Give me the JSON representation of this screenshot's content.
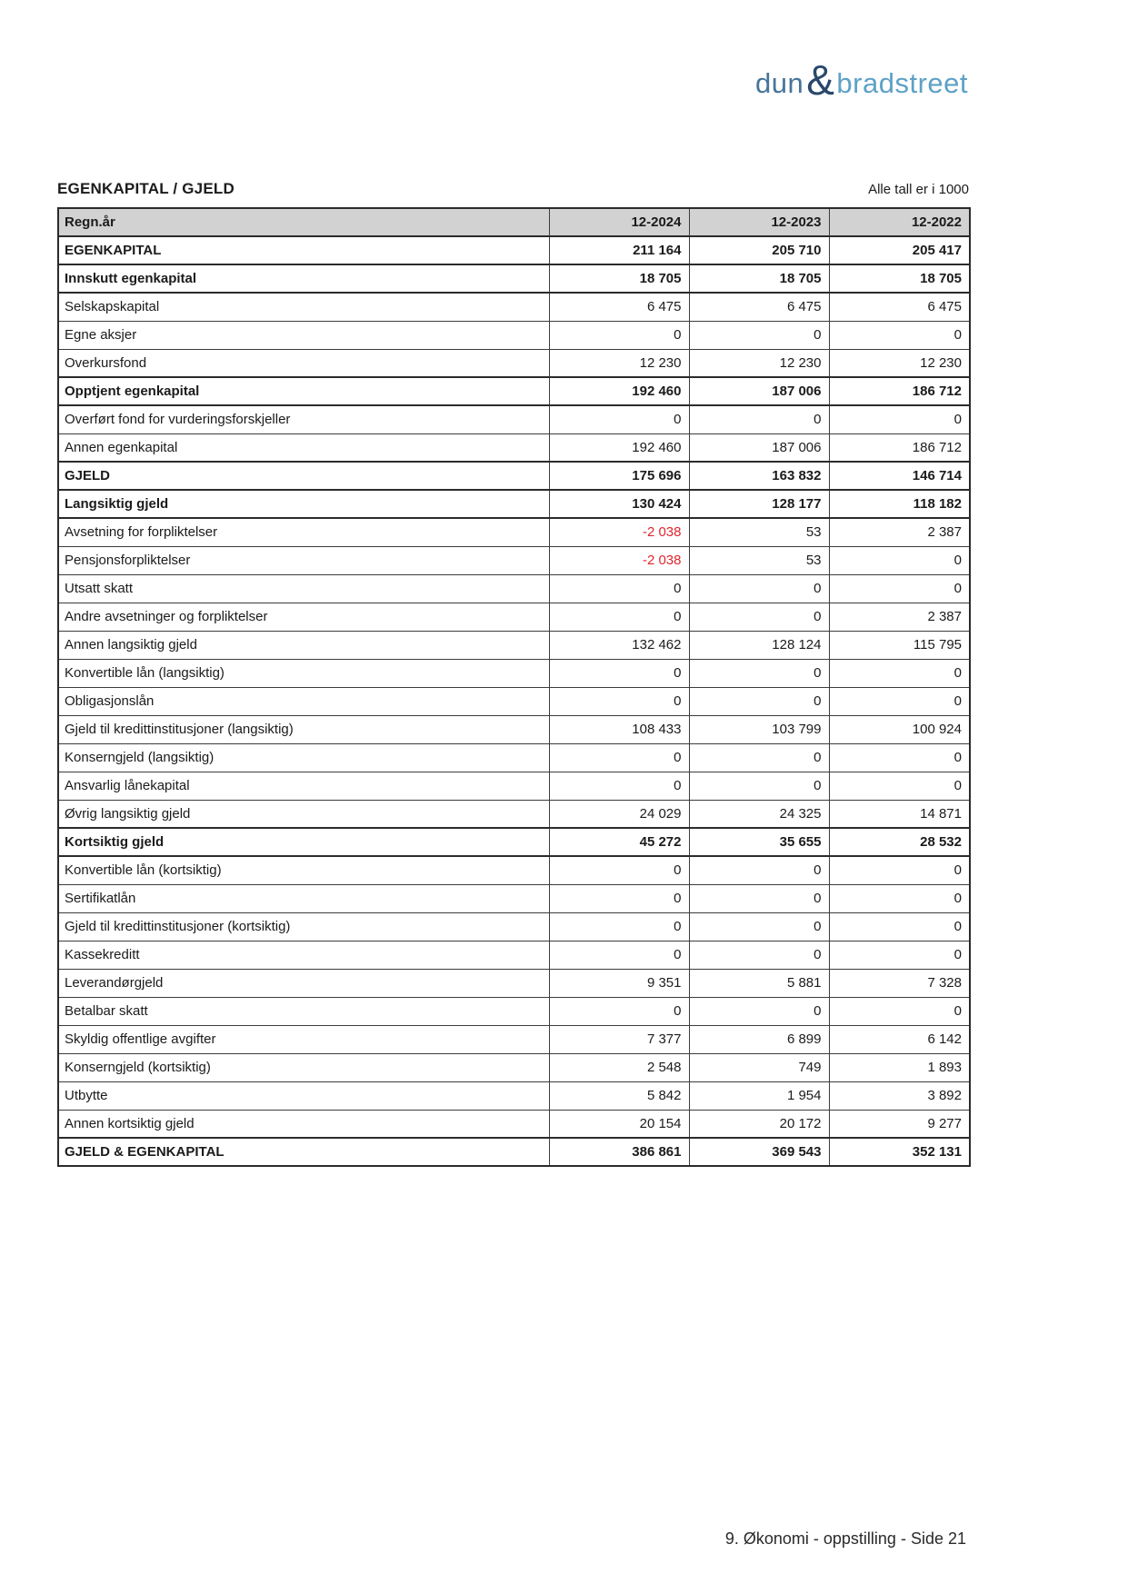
{
  "logo": {
    "dun": "dun",
    "amp": "&",
    "bradstreet": "bradstreet",
    "dun_color": "#47759a",
    "amp_color": "#29486b",
    "bradstreet_color": "#5ea1c6"
  },
  "page": {
    "title": "EGENKAPITAL / GJELD",
    "units_note": "Alle tall er i 1000",
    "footer": "9. Økonomi - oppstilling - Side 21"
  },
  "table": {
    "header": {
      "label": "Regn.år",
      "cols": [
        "12-2024",
        "12-2023",
        "12-2022"
      ]
    },
    "negative_color": "#e0262c",
    "header_bg": "#d2d2d2",
    "rows": [
      {
        "label": "EGENKAPITAL",
        "bold": true,
        "values": [
          "211 164",
          "205 710",
          "205 417"
        ]
      },
      {
        "label": "Innskutt egenkapital",
        "bold": true,
        "values": [
          "18 705",
          "18 705",
          "18 705"
        ]
      },
      {
        "label": "Selskapskapital",
        "bold": false,
        "values": [
          "6 475",
          "6 475",
          "6 475"
        ]
      },
      {
        "label": "Egne aksjer",
        "bold": false,
        "values": [
          "0",
          "0",
          "0"
        ]
      },
      {
        "label": "Overkursfond",
        "bold": false,
        "values": [
          "12 230",
          "12 230",
          "12 230"
        ]
      },
      {
        "label": "Opptjent egenkapital",
        "bold": true,
        "values": [
          "192 460",
          "187 006",
          "186 712"
        ]
      },
      {
        "label": "Overført fond for vurderingsforskjeller",
        "bold": false,
        "values": [
          "0",
          "0",
          "0"
        ]
      },
      {
        "label": "Annen egenkapital",
        "bold": false,
        "values": [
          "192 460",
          "187 006",
          "186 712"
        ]
      },
      {
        "label": "GJELD",
        "bold": true,
        "values": [
          "175 696",
          "163 832",
          "146 714"
        ]
      },
      {
        "label": "Langsiktig gjeld",
        "bold": true,
        "values": [
          "130 424",
          "128 177",
          "118 182"
        ]
      },
      {
        "label": "Avsetning for forpliktelser",
        "bold": false,
        "values": [
          "-2 038",
          "53",
          "2 387"
        ]
      },
      {
        "label": "Pensjonsforpliktelser",
        "bold": false,
        "values": [
          "-2 038",
          "53",
          "0"
        ]
      },
      {
        "label": "Utsatt skatt",
        "bold": false,
        "values": [
          "0",
          "0",
          "0"
        ]
      },
      {
        "label": "Andre avsetninger og forpliktelser",
        "bold": false,
        "values": [
          "0",
          "0",
          "2 387"
        ]
      },
      {
        "label": "Annen langsiktig gjeld",
        "bold": false,
        "values": [
          "132 462",
          "128 124",
          "115 795"
        ]
      },
      {
        "label": "Konvertible lån (langsiktig)",
        "bold": false,
        "values": [
          "0",
          "0",
          "0"
        ]
      },
      {
        "label": "Obligasjonslån",
        "bold": false,
        "values": [
          "0",
          "0",
          "0"
        ]
      },
      {
        "label": "Gjeld til kredittinstitusjoner (langsiktig)",
        "bold": false,
        "values": [
          "108 433",
          "103 799",
          "100 924"
        ]
      },
      {
        "label": "Konserngjeld (langsiktig)",
        "bold": false,
        "values": [
          "0",
          "0",
          "0"
        ]
      },
      {
        "label": "Ansvarlig lånekapital",
        "bold": false,
        "values": [
          "0",
          "0",
          "0"
        ]
      },
      {
        "label": "Øvrig langsiktig gjeld",
        "bold": false,
        "values": [
          "24 029",
          "24 325",
          "14 871"
        ]
      },
      {
        "label": "Kortsiktig gjeld",
        "bold": true,
        "values": [
          "45 272",
          "35 655",
          "28 532"
        ]
      },
      {
        "label": "Konvertible lån (kortsiktig)",
        "bold": false,
        "values": [
          "0",
          "0",
          "0"
        ]
      },
      {
        "label": "Sertifikatlån",
        "bold": false,
        "values": [
          "0",
          "0",
          "0"
        ]
      },
      {
        "label": "Gjeld til kredittinstitusjoner (kortsiktig)",
        "bold": false,
        "values": [
          "0",
          "0",
          "0"
        ]
      },
      {
        "label": "Kassekreditt",
        "bold": false,
        "values": [
          "0",
          "0",
          "0"
        ]
      },
      {
        "label": "Leverandørgjeld",
        "bold": false,
        "values": [
          "9 351",
          "5 881",
          "7 328"
        ]
      },
      {
        "label": "Betalbar skatt",
        "bold": false,
        "values": [
          "0",
          "0",
          "0"
        ]
      },
      {
        "label": "Skyldig offentlige avgifter",
        "bold": false,
        "values": [
          "7 377",
          "6 899",
          "6 142"
        ]
      },
      {
        "label": "Konserngjeld (kortsiktig)",
        "bold": false,
        "values": [
          "2 548",
          "749",
          "1 893"
        ]
      },
      {
        "label": "Utbytte",
        "bold": false,
        "values": [
          "5 842",
          "1 954",
          "3 892"
        ]
      },
      {
        "label": "Annen kortsiktig gjeld",
        "bold": false,
        "values": [
          "20 154",
          "20 172",
          "9 277"
        ]
      },
      {
        "label": "GJELD & EGENKAPITAL",
        "bold": true,
        "values": [
          "386 861",
          "369 543",
          "352 131"
        ]
      }
    ]
  }
}
